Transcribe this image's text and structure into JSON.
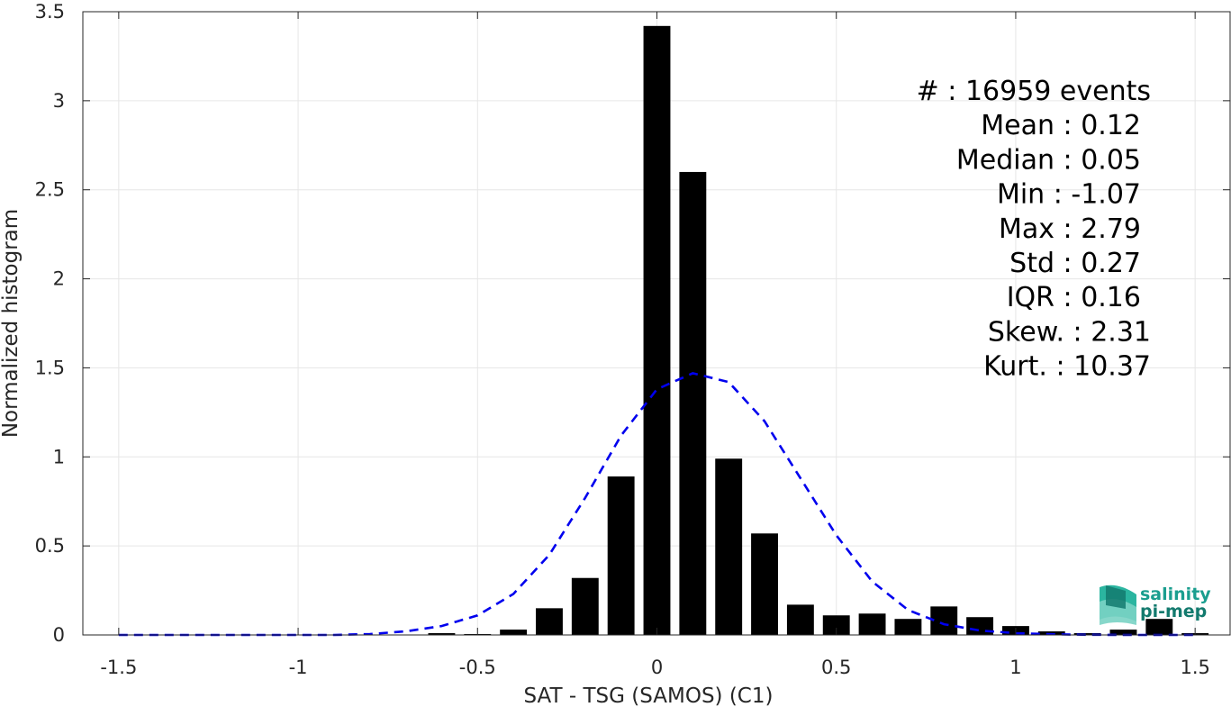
{
  "chart_data": {
    "type": "bar",
    "xlabel": "SAT - TSG (SAMOS) (C1)",
    "ylabel": "Normalized histogram",
    "xlim": [
      -1.6,
      1.6
    ],
    "ylim": [
      0,
      3.5
    ],
    "xticks": [
      -1.5,
      -1,
      -0.5,
      0,
      0.5,
      1,
      1.5
    ],
    "xtick_labels": [
      "-1.5",
      "-1",
      "-0.5",
      "0",
      "0.5",
      "1",
      "1.5"
    ],
    "yticks": [
      0,
      0.5,
      1,
      1.5,
      2,
      2.5,
      3,
      3.5
    ],
    "ytick_labels": [
      "0",
      "0.5",
      "1",
      "1.5",
      "2",
      "2.5",
      "3",
      "3.5"
    ],
    "grid": true,
    "bar_width": 0.075,
    "bars": {
      "x": [
        -0.6,
        -0.5,
        -0.4,
        -0.3,
        -0.2,
        -0.1,
        0.0,
        0.1,
        0.2,
        0.3,
        0.4,
        0.5,
        0.6,
        0.7,
        0.8,
        0.9,
        1.0,
        1.1,
        1.2,
        1.3,
        1.4,
        1.5
      ],
      "values": [
        0.01,
        0.005,
        0.03,
        0.15,
        0.32,
        0.89,
        3.42,
        2.6,
        0.99,
        0.57,
        0.17,
        0.11,
        0.12,
        0.09,
        0.16,
        0.1,
        0.05,
        0.02,
        0.01,
        0.03,
        0.09,
        0.01
      ],
      "color": "#000000"
    },
    "fit_curve": {
      "style": "dashed",
      "color": "#0000ee",
      "x": [
        -1.5,
        -1.4,
        -1.3,
        -1.2,
        -1.1,
        -1.0,
        -0.9,
        -0.8,
        -0.7,
        -0.6,
        -0.5,
        -0.4,
        -0.3,
        -0.2,
        -0.1,
        0.0,
        0.1,
        0.2,
        0.3,
        0.4,
        0.5,
        0.6,
        0.7,
        0.8,
        0.9,
        1.0,
        1.1,
        1.2,
        1.3,
        1.4,
        1.5
      ],
      "y": [
        0.0,
        0.0,
        0.0,
        0.0,
        0.0,
        0.0,
        0.0,
        0.005,
        0.02,
        0.05,
        0.11,
        0.23,
        0.45,
        0.77,
        1.12,
        1.38,
        1.47,
        1.42,
        1.2,
        0.88,
        0.56,
        0.3,
        0.14,
        0.06,
        0.025,
        0.01,
        0.004,
        0.001,
        0.0,
        0.0,
        0.0
      ]
    },
    "stats": [
      "#  : 16959 events",
      "Mean : 0.12",
      "Median : 0.05",
      "Min : -1.07",
      "Max : 2.79",
      "Std : 0.27",
      "IQR : 0.16",
      "Skew. : 2.31",
      "Kurt. : 10.37"
    ]
  },
  "logo": {
    "line1": "salinity",
    "line2": "pi-mep",
    "color": "#1a9e8f"
  }
}
